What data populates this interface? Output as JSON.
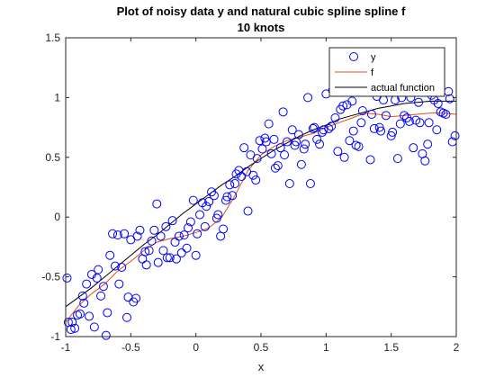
{
  "chart_data": {
    "type": "scatter",
    "title": "Plot of noisy data y and natural cubic spline spline f",
    "subtitle": "10 knots",
    "xlabel": "x",
    "ylabel": "",
    "xlim": [
      -1,
      2
    ],
    "ylim": [
      -1,
      1.5
    ],
    "xticks": [
      -1,
      -0.5,
      0,
      0.5,
      1,
      1.5,
      2
    ],
    "xtick_labels": [
      "-1",
      "-0.5",
      "0",
      "0.5",
      "1",
      "1.5",
      "2"
    ],
    "yticks": [
      -1,
      -0.5,
      0,
      0.5,
      1,
      1.5
    ],
    "ytick_labels": [
      "-1",
      "-0.5",
      "0",
      "0.5",
      "1",
      "1.5"
    ],
    "grid": false,
    "legend_position": "top-right",
    "legend": [
      {
        "label": "y",
        "marker": "circle",
        "color": "#0000ff"
      },
      {
        "label": "f",
        "marker": "line",
        "color": "#d95319"
      },
      {
        "label": "actual function",
        "marker": "line",
        "color": "#000000"
      }
    ],
    "series": [
      {
        "name": "y",
        "kind": "scatter",
        "color": "#0000ff",
        "points": [
          [
            -0.99,
            -0.51
          ],
          [
            -0.98,
            -0.88
          ],
          [
            -0.96,
            -0.94
          ],
          [
            -0.95,
            -0.88
          ],
          [
            -0.93,
            -0.93
          ],
          [
            -0.91,
            -0.82
          ],
          [
            -0.89,
            -0.81
          ],
          [
            -0.87,
            -0.66
          ],
          [
            -0.86,
            -0.72
          ],
          [
            -0.84,
            -0.56
          ],
          [
            -0.82,
            -0.83
          ],
          [
            -0.8,
            -0.48
          ],
          [
            -0.78,
            -0.92
          ],
          [
            -0.76,
            -0.51
          ],
          [
            -0.75,
            -0.44
          ],
          [
            -0.73,
            -0.66
          ],
          [
            -0.71,
            -0.58
          ],
          [
            -0.69,
            -0.99
          ],
          [
            -0.68,
            -0.8
          ],
          [
            -0.66,
            -0.32
          ],
          [
            -0.64,
            -0.14
          ],
          [
            -0.62,
            -0.41
          ],
          [
            -0.6,
            -0.15
          ],
          [
            -0.59,
            -0.56
          ],
          [
            -0.57,
            -0.42
          ],
          [
            -0.55,
            -0.14
          ],
          [
            -0.53,
            -0.84
          ],
          [
            -0.52,
            -0.67
          ],
          [
            -0.5,
            -0.19
          ],
          [
            -0.48,
            -0.71
          ],
          [
            -0.46,
            -0.68
          ],
          [
            -0.45,
            -0.16
          ],
          [
            -0.43,
            -0.11
          ],
          [
            -0.41,
            -0.35
          ],
          [
            -0.39,
            -0.29
          ],
          [
            -0.38,
            -0.4
          ],
          [
            -0.36,
            -0.28
          ],
          [
            -0.34,
            -0.2
          ],
          [
            -0.32,
            -0.11
          ],
          [
            -0.3,
            0.11
          ],
          [
            -0.29,
            -0.38
          ],
          [
            -0.27,
            -0.16
          ],
          [
            -0.25,
            -0.28
          ],
          [
            -0.23,
            -0.08
          ],
          [
            -0.22,
            -0.34
          ],
          [
            -0.2,
            -0.34
          ],
          [
            -0.18,
            -0.03
          ],
          [
            -0.16,
            -0.21
          ],
          [
            -0.15,
            -0.35
          ],
          [
            -0.13,
            -0.16
          ],
          [
            -0.11,
            -0.3
          ],
          [
            -0.09,
            -0.15
          ],
          [
            -0.07,
            -0.26
          ],
          [
            -0.06,
            -0.09
          ],
          [
            -0.04,
            -0.04
          ],
          [
            -0.02,
            0.14
          ],
          [
            -0.0,
            -0.32
          ],
          [
            0.01,
            -0.14
          ],
          [
            0.03,
            0.02
          ],
          [
            0.05,
            0.12
          ],
          [
            0.07,
            -0.08
          ],
          [
            0.08,
            0.09
          ],
          [
            0.1,
            0.13
          ],
          [
            0.12,
            0.21
          ],
          [
            0.14,
            0.18
          ],
          [
            0.16,
            -0.01
          ],
          [
            0.17,
            0.02
          ],
          [
            0.19,
            -0.16
          ],
          [
            0.21,
            -0.1
          ],
          [
            0.23,
            0.14
          ],
          [
            0.24,
            0.17
          ],
          [
            0.26,
            0.27
          ],
          [
            0.28,
            0.18
          ],
          [
            0.3,
            0.28
          ],
          [
            0.31,
            0.36
          ],
          [
            0.33,
            0.39
          ],
          [
            0.35,
            0.34
          ],
          [
            0.37,
            0.58
          ],
          [
            0.39,
            0.38
          ],
          [
            0.4,
            0.05
          ],
          [
            0.42,
            0.52
          ],
          [
            0.44,
            0.35
          ],
          [
            0.46,
            0.31
          ],
          [
            0.47,
            0.49
          ],
          [
            0.49,
            0.64
          ],
          [
            0.51,
            0.57
          ],
          [
            0.53,
            0.66
          ],
          [
            0.54,
            0.63
          ],
          [
            0.56,
            0.78
          ],
          [
            0.58,
            0.53
          ],
          [
            0.6,
            0.65
          ],
          [
            0.61,
            0.41
          ],
          [
            0.63,
            0.43
          ],
          [
            0.65,
            0.58
          ],
          [
            0.67,
            0.88
          ],
          [
            0.68,
            0.52
          ],
          [
            0.7,
            0.63
          ],
          [
            0.72,
            0.28
          ],
          [
            0.74,
            0.73
          ],
          [
            0.76,
            0.6
          ],
          [
            0.77,
            0.63
          ],
          [
            0.79,
            0.69
          ],
          [
            0.81,
            0.44
          ],
          [
            0.83,
            0.57
          ],
          [
            0.84,
            0.61
          ],
          [
            0.86,
            1.0
          ],
          [
            0.88,
            0.28
          ],
          [
            0.9,
            0.74
          ],
          [
            0.91,
            0.75
          ],
          [
            0.93,
            0.65
          ],
          [
            0.95,
            0.61
          ],
          [
            0.97,
            0.71
          ],
          [
            0.98,
            0.73
          ],
          [
            1.0,
            1.03
          ],
          [
            1.02,
            0.74
          ],
          [
            1.04,
            0.76
          ],
          [
            1.05,
            1.06
          ],
          [
            1.07,
            0.83
          ],
          [
            1.09,
            0.55
          ],
          [
            1.11,
            0.9
          ],
          [
            1.13,
            0.93
          ],
          [
            1.14,
            0.5
          ],
          [
            1.16,
            0.94
          ],
          [
            1.18,
            0.64
          ],
          [
            1.2,
            0.97
          ],
          [
            1.21,
            0.72
          ],
          [
            1.23,
            0.6
          ],
          [
            1.25,
            0.59
          ],
          [
            1.27,
            0.79
          ],
          [
            1.28,
            0.89
          ],
          [
            1.3,
            1.08
          ],
          [
            1.32,
            1.14
          ],
          [
            1.34,
            0.48
          ],
          [
            1.35,
            0.86
          ],
          [
            1.37,
            0.74
          ],
          [
            1.39,
            1.01
          ],
          [
            1.41,
            0.75
          ],
          [
            1.42,
            0.72
          ],
          [
            1.44,
            0.98
          ],
          [
            1.46,
            0.85
          ],
          [
            1.48,
            1.11
          ],
          [
            1.5,
            0.68
          ],
          [
            1.51,
            0.71
          ],
          [
            1.53,
            0.98
          ],
          [
            1.55,
            0.49
          ],
          [
            1.57,
            0.78
          ],
          [
            1.58,
            1.0
          ],
          [
            1.6,
            0.85
          ],
          [
            1.62,
            0.83
          ],
          [
            1.64,
            0.8
          ],
          [
            1.65,
            1.0
          ],
          [
            1.67,
            0.58
          ],
          [
            1.69,
            0.81
          ],
          [
            1.71,
            0.96
          ],
          [
            1.72,
            0.79
          ],
          [
            1.74,
            0.53
          ],
          [
            1.76,
            0.47
          ],
          [
            1.78,
            0.61
          ],
          [
            1.79,
            0.79
          ],
          [
            1.81,
            1.02
          ],
          [
            1.83,
            0.98
          ],
          [
            1.85,
            0.73
          ],
          [
            1.86,
            0.95
          ],
          [
            1.88,
            0.88
          ],
          [
            1.9,
            0.87
          ],
          [
            1.92,
            0.86
          ],
          [
            1.94,
            1.05
          ],
          [
            1.95,
            0.99
          ],
          [
            1.97,
            0.63
          ],
          [
            1.99,
            0.68
          ]
        ]
      },
      {
        "name": "f",
        "kind": "line",
        "color": "#d95319",
        "points": [
          [
            -1.0,
            -0.88
          ],
          [
            -0.9,
            -0.74
          ],
          [
            -0.8,
            -0.64
          ],
          [
            -0.7,
            -0.56
          ],
          [
            -0.6,
            -0.45
          ],
          [
            -0.5,
            -0.37
          ],
          [
            -0.4,
            -0.28
          ],
          [
            -0.3,
            -0.21
          ],
          [
            -0.2,
            -0.18
          ],
          [
            -0.1,
            -0.16
          ],
          [
            0.0,
            -0.13
          ],
          [
            0.1,
            -0.09
          ],
          [
            0.2,
            -0.0
          ],
          [
            0.3,
            0.18
          ],
          [
            0.4,
            0.39
          ],
          [
            0.5,
            0.52
          ],
          [
            0.6,
            0.59
          ],
          [
            0.7,
            0.64
          ],
          [
            0.8,
            0.67
          ],
          [
            0.9,
            0.7
          ],
          [
            1.0,
            0.75
          ],
          [
            1.1,
            0.79
          ],
          [
            1.2,
            0.83
          ],
          [
            1.3,
            0.87
          ],
          [
            1.4,
            0.86
          ],
          [
            1.5,
            0.84
          ],
          [
            1.6,
            0.85
          ],
          [
            1.7,
            0.86
          ],
          [
            1.8,
            0.87
          ],
          [
            1.9,
            0.87
          ],
          [
            2.0,
            0.86
          ]
        ]
      },
      {
        "name": "actual function",
        "kind": "line",
        "color": "#000000",
        "points": [
          [
            -1.0,
            -0.75
          ],
          [
            -0.9,
            -0.67
          ],
          [
            -0.8,
            -0.59
          ],
          [
            -0.7,
            -0.5
          ],
          [
            -0.6,
            -0.41
          ],
          [
            -0.5,
            -0.32
          ],
          [
            -0.4,
            -0.23
          ],
          [
            -0.3,
            -0.15
          ],
          [
            -0.2,
            -0.06
          ],
          [
            -0.1,
            0.03
          ],
          [
            0.0,
            0.11
          ],
          [
            0.1,
            0.19
          ],
          [
            0.2,
            0.27
          ],
          [
            0.3,
            0.34
          ],
          [
            0.4,
            0.42
          ],
          [
            0.5,
            0.49
          ],
          [
            0.6,
            0.56
          ],
          [
            0.7,
            0.62
          ],
          [
            0.8,
            0.68
          ],
          [
            0.9,
            0.73
          ],
          [
            1.0,
            0.77
          ],
          [
            1.1,
            0.82
          ],
          [
            1.2,
            0.85
          ],
          [
            1.3,
            0.88
          ],
          [
            1.4,
            0.91
          ],
          [
            1.5,
            0.93
          ],
          [
            1.6,
            0.95
          ],
          [
            1.7,
            0.96
          ],
          [
            1.8,
            0.97
          ],
          [
            1.9,
            0.97
          ],
          [
            2.0,
            0.97
          ]
        ]
      }
    ]
  }
}
